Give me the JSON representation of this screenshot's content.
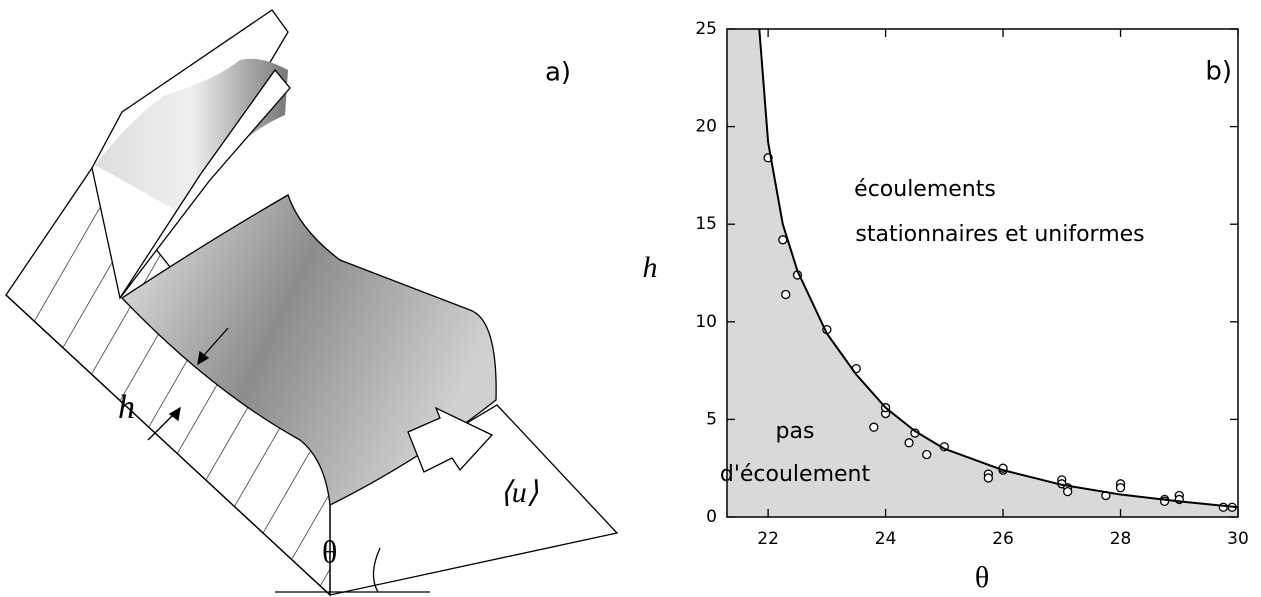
{
  "diagram": {
    "panel_label": "a)",
    "h_label": "h",
    "u_label": "⟨u⟩",
    "theta_label": "θ"
  },
  "chart_data": {
    "type": "scatter",
    "panel_label": "b)",
    "xlabel": "θ",
    "ylabel": "h",
    "xlim": [
      21.3,
      30
    ],
    "ylim": [
      0,
      25
    ],
    "xticks": [
      22,
      24,
      26,
      28,
      30
    ],
    "yticks": [
      0,
      5,
      10,
      15,
      20,
      25
    ],
    "fill_color": "#d9d9d9",
    "annotations": [
      "écoulements",
      "stationnaires et uniformes",
      "pas",
      "d'écoulement"
    ],
    "series": [
      {
        "type": "points",
        "color": "#000000",
        "x": [
          22.0,
          22.25,
          22.3,
          22.5,
          23.0,
          23.5,
          23.8,
          24.0,
          24.0,
          24.4,
          24.5,
          24.7,
          25.0,
          25.75,
          25.75,
          26.0,
          26.0,
          27.0,
          27.0,
          27.1,
          27.1,
          27.75,
          28.0,
          28.0,
          28.75,
          28.75,
          29.0,
          29.0,
          29.75,
          29.9
        ],
        "values": [
          18.4,
          14.2,
          11.4,
          12.4,
          9.6,
          7.6,
          4.6,
          5.3,
          5.6,
          3.8,
          4.3,
          3.2,
          3.6,
          2.2,
          2.0,
          2.4,
          2.5,
          1.9,
          1.7,
          1.5,
          1.3,
          1.1,
          1.7,
          1.5,
          0.9,
          0.8,
          1.1,
          0.9,
          0.5,
          0.5
        ]
      },
      {
        "type": "line",
        "color": "#000000",
        "x": [
          21.85,
          22.0,
          22.25,
          22.5,
          23.0,
          23.5,
          24.0,
          24.5,
          25.0,
          26.0,
          27.0,
          28.0,
          29.0,
          30.0
        ],
        "values": [
          25,
          19.2,
          15,
          12.6,
          9.4,
          7.3,
          5.6,
          4.4,
          3.5,
          2.4,
          1.65,
          1.15,
          0.8,
          0.5
        ]
      }
    ]
  }
}
